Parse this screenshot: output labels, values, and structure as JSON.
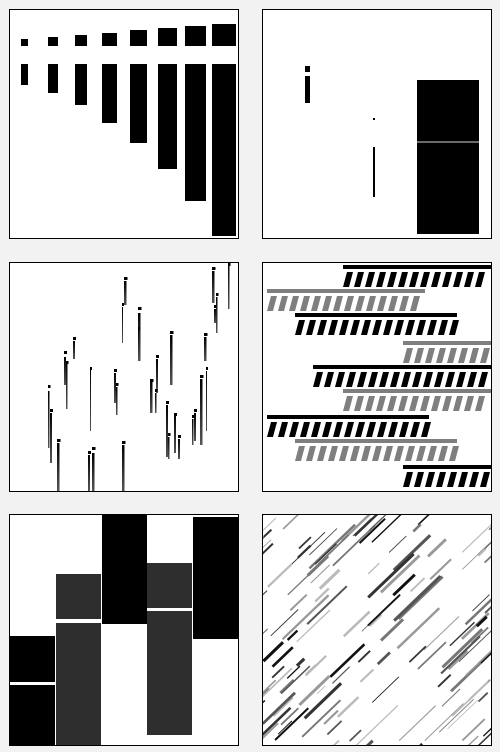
{
  "figure": {
    "panel_count": 6,
    "colors": {
      "background": "#f2f2f2",
      "panel": "#ffffff",
      "ink": "#000000",
      "dark_gray": "#333333",
      "mid_gray": "#7f7f7f",
      "light_gray": "#b0b0b0"
    }
  }
}
